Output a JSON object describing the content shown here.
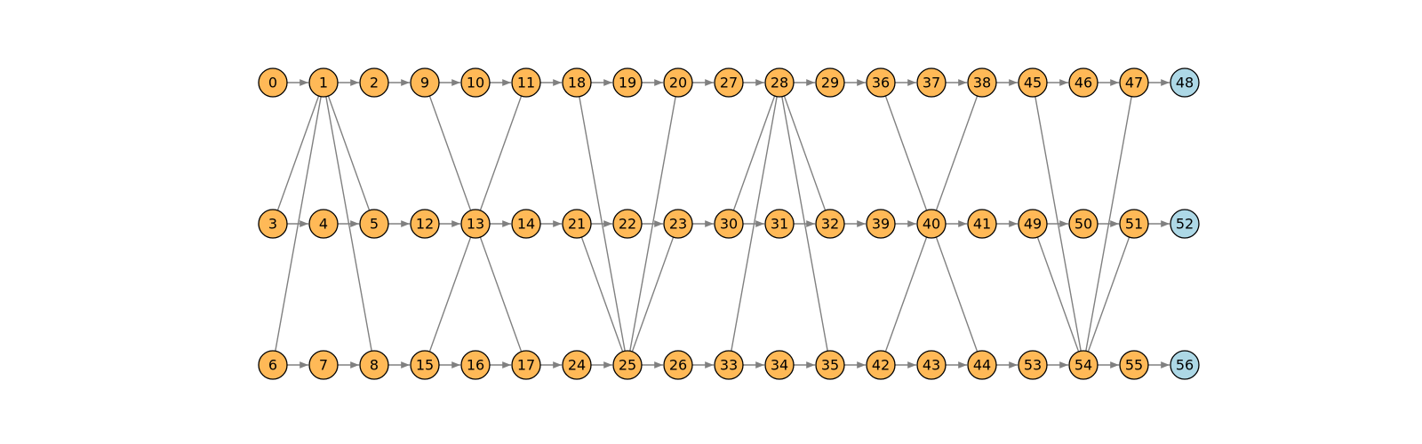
{
  "graph": {
    "colors": {
      "edge": "#808080",
      "node_fill": "#FFB957",
      "sink_fill": "#ADD8E6",
      "node_stroke": "#000000"
    },
    "rows": [
      [
        "0",
        "1",
        "2",
        "9",
        "10",
        "11",
        "18",
        "19",
        "20",
        "27",
        "28",
        "29",
        "36",
        "37",
        "38",
        "45",
        "46",
        "47",
        "48"
      ],
      [
        "3",
        "4",
        "5",
        "12",
        "13",
        "14",
        "21",
        "22",
        "23",
        "30",
        "31",
        "32",
        "39",
        "40",
        "41",
        "49",
        "50",
        "51",
        "52"
      ],
      [
        "6",
        "7",
        "8",
        "15",
        "16",
        "17",
        "24",
        "25",
        "26",
        "33",
        "34",
        "35",
        "42",
        "43",
        "44",
        "53",
        "54",
        "55",
        "56"
      ]
    ],
    "sink_nodes": [
      "48",
      "52",
      "56"
    ],
    "chain_edges_directed": true,
    "cross_edges": [
      [
        "1",
        "3"
      ],
      [
        "1",
        "5"
      ],
      [
        "1",
        "6"
      ],
      [
        "1",
        "8"
      ],
      [
        "9",
        "13"
      ],
      [
        "11",
        "13"
      ],
      [
        "13",
        "15"
      ],
      [
        "13",
        "17"
      ],
      [
        "18",
        "25"
      ],
      [
        "20",
        "25"
      ],
      [
        "21",
        "25"
      ],
      [
        "23",
        "25"
      ],
      [
        "28",
        "30"
      ],
      [
        "28",
        "32"
      ],
      [
        "28",
        "33"
      ],
      [
        "28",
        "35"
      ],
      [
        "36",
        "40"
      ],
      [
        "38",
        "40"
      ],
      [
        "40",
        "42"
      ],
      [
        "40",
        "44"
      ],
      [
        "45",
        "54"
      ],
      [
        "47",
        "54"
      ],
      [
        "49",
        "54"
      ],
      [
        "51",
        "54"
      ]
    ]
  }
}
